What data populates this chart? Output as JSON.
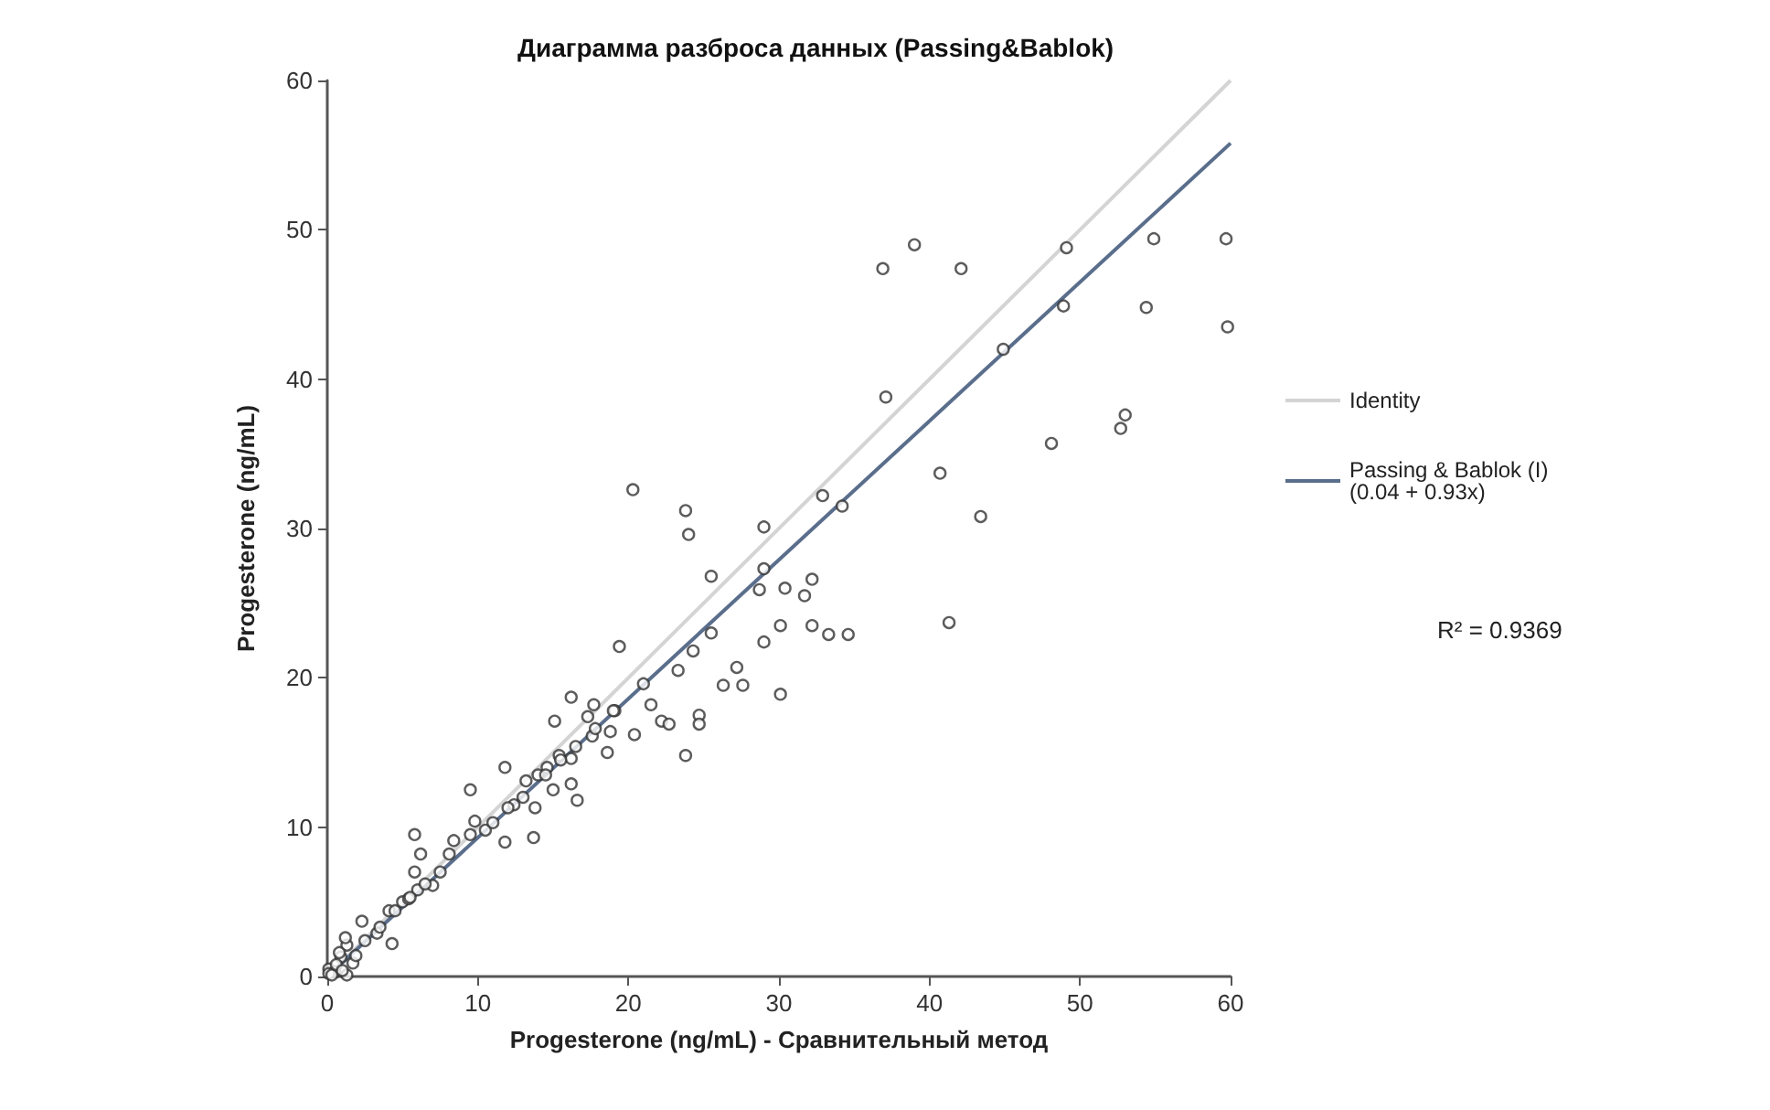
{
  "chart_data": {
    "type": "scatter",
    "title": "Диаграмма разброса данных (Passing&Bablok)",
    "xlabel": "Progesterone (ng/mL) - Сравнительный метод",
    "ylabel": "Progesterone (ng/mL)",
    "annotations": [
      "R² = 0.9369"
    ],
    "xlim": [
      0,
      60
    ],
    "ylim": [
      0,
      60
    ],
    "xticks": [
      0,
      10,
      20,
      30,
      40,
      50,
      60
    ],
    "yticks": [
      0,
      10,
      20,
      30,
      40,
      50,
      60
    ],
    "grid": false,
    "legend": "right",
    "marker": "circle",
    "series": [
      {
        "type": "line",
        "name": "Identity",
        "color": "#d4d4d4",
        "x": [
          0,
          60
        ],
        "values": [
          0,
          60
        ],
        "marker": "none",
        "line_style": "solid"
      },
      {
        "type": "line",
        "name": "Passing & Bablok (I)\n(0.04 + 0.93x)",
        "color": "#5a6e8c",
        "x": [
          0,
          60
        ],
        "values": [
          0,
          55.8
        ],
        "marker": "none",
        "line_style": "solid"
      },
      {
        "color": "#333333",
        "x": [
          39.0,
          36.9,
          42.1,
          49.1,
          54.9,
          59.7,
          54.4,
          59.8,
          48.9,
          44.9,
          37.1,
          53.0,
          52.7,
          48.1,
          40.7,
          32.9,
          34.2,
          43.4,
          32.2,
          31.7,
          32.2,
          33.3,
          34.6,
          41.3,
          20.3,
          23.8,
          24.0,
          29.0,
          25.5,
          29.0,
          28.7,
          30.4,
          25.5,
          30.1,
          29.0,
          19.4,
          24.3,
          23.3,
          27.2,
          26.3,
          27.6,
          30.1,
          21.5,
          19.1,
          16.2,
          17.7,
          15.1,
          17.3,
          22.2,
          22.7,
          24.7,
          24.7,
          20.4,
          18.8,
          17.6,
          18.6,
          23.8,
          15.4,
          16.2,
          14.6,
          14.0,
          13.2,
          16.2,
          15.0,
          16.6,
          13.8,
          12.4,
          13.7,
          9.5,
          11.8,
          5.8,
          6.2,
          8.4,
          9.5,
          9.8,
          11.8,
          8.1,
          5.8,
          2.3,
          7.0,
          5.0,
          4.1,
          3.3,
          4.3,
          1.3,
          0.9,
          1.7,
          0.1,
          0.5,
          1.3,
          0.1,
          5.4,
          6.0,
          4.5,
          5.5,
          6.5,
          3.5,
          2.5,
          7.5,
          10.5,
          11.0,
          12.0,
          13.0,
          14.5,
          15.5,
          16.5,
          17.8,
          19.0,
          21.0,
          0.3,
          0.6,
          1.0,
          0.8,
          1.9,
          1.2
        ],
        "values": [
          49.0,
          47.4,
          47.4,
          48.8,
          49.4,
          49.4,
          44.8,
          43.5,
          44.9,
          42.0,
          38.8,
          37.6,
          36.7,
          35.7,
          33.7,
          32.2,
          31.5,
          30.8,
          26.6,
          25.5,
          23.5,
          22.9,
          22.9,
          23.7,
          32.6,
          31.2,
          29.6,
          30.1,
          26.8,
          27.3,
          25.9,
          26.0,
          23.0,
          23.5,
          22.4,
          22.1,
          21.8,
          20.5,
          20.7,
          19.5,
          19.5,
          18.9,
          18.2,
          17.8,
          18.7,
          18.2,
          17.1,
          17.4,
          17.1,
          16.9,
          17.5,
          16.9,
          16.2,
          16.4,
          16.1,
          15.0,
          14.8,
          14.8,
          14.6,
          14.0,
          13.5,
          13.1,
          12.9,
          12.5,
          11.8,
          11.3,
          11.5,
          9.3,
          12.5,
          14.0,
          9.5,
          8.2,
          9.1,
          9.5,
          10.4,
          9.0,
          8.2,
          7.0,
          3.7,
          6.1,
          5.0,
          4.4,
          2.9,
          2.2,
          2.1,
          1.3,
          0.9,
          0.5,
          0.3,
          0.1,
          0.2,
          5.2,
          5.8,
          4.4,
          5.3,
          6.2,
          3.3,
          2.4,
          7.0,
          9.8,
          10.3,
          11.3,
          12.0,
          13.5,
          14.5,
          15.4,
          16.6,
          17.8,
          19.6,
          0.1,
          0.8,
          0.4,
          1.6,
          1.4,
          2.6
        ]
      }
    ]
  }
}
